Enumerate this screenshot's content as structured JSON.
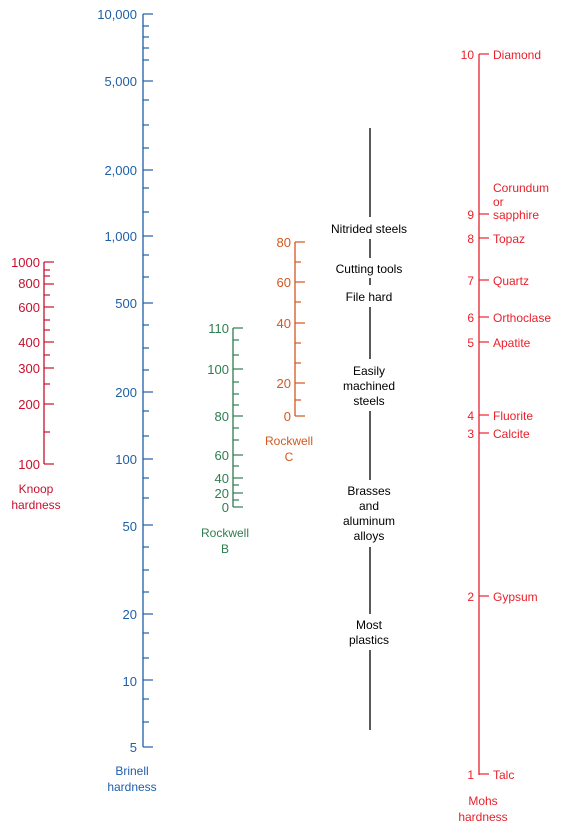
{
  "colors": {
    "knoop": "#c8102e",
    "brinell": "#1f5fa8",
    "rockwell_b": "#2e7d4f",
    "rockwell_c": "#d2581f",
    "materials": "#000000",
    "mohs": "#e8212b"
  },
  "knoop": {
    "title_lines": [
      "Knoop",
      "hardness"
    ],
    "labels": [
      "1000",
      "800",
      "600",
      "400",
      "300",
      "200",
      "100"
    ]
  },
  "brinell": {
    "title_lines": [
      "Brinell",
      "hardness"
    ],
    "labels": [
      "10,000",
      "5,000",
      "2,000",
      "1,000",
      "500",
      "200",
      "100",
      "50",
      "20",
      "10",
      "5"
    ]
  },
  "rockwell_b": {
    "title_lines": [
      "Rockwell",
      "B"
    ],
    "labels": [
      "110",
      "100",
      "80",
      "60",
      "40",
      "20",
      "0"
    ]
  },
  "rockwell_c": {
    "title_lines": [
      "Rockwell",
      "C"
    ],
    "labels": [
      "80",
      "60",
      "40",
      "20",
      "0"
    ]
  },
  "materials": [
    {
      "lines": [
        "Nitrided steels"
      ]
    },
    {
      "lines": [
        "Cutting tools"
      ]
    },
    {
      "lines": [
        "File hard"
      ]
    },
    {
      "lines": [
        "Easily",
        "machined",
        "steels"
      ]
    },
    {
      "lines": [
        "Brasses",
        "and",
        "aluminum",
        "alloys"
      ]
    },
    {
      "lines": [
        "Most",
        "plastics"
      ]
    }
  ],
  "mohs": {
    "title_lines": [
      "Mohs",
      "hardness"
    ],
    "entries": [
      {
        "value": "10",
        "mineral_lines": [
          "Diamond"
        ]
      },
      {
        "value": "9",
        "mineral_lines": [
          "Corundum",
          "or",
          "sapphire"
        ]
      },
      {
        "value": "8",
        "mineral_lines": [
          "Topaz"
        ]
      },
      {
        "value": "7",
        "mineral_lines": [
          "Quartz"
        ]
      },
      {
        "value": "6",
        "mineral_lines": [
          "Orthoclase"
        ]
      },
      {
        "value": "5",
        "mineral_lines": [
          "Apatite"
        ]
      },
      {
        "value": "4",
        "mineral_lines": [
          "Fluorite"
        ]
      },
      {
        "value": "3",
        "mineral_lines": [
          "Calcite"
        ]
      },
      {
        "value": "2",
        "mineral_lines": [
          "Gypsum"
        ]
      },
      {
        "value": "1",
        "mineral_lines": [
          "Talc"
        ]
      }
    ]
  }
}
